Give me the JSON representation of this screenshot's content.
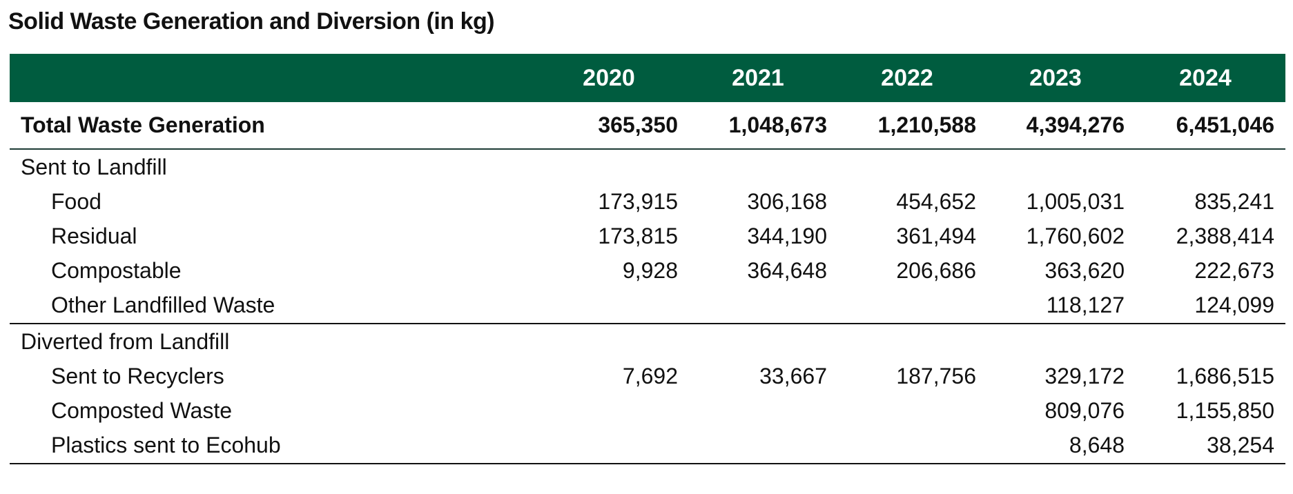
{
  "title": "Solid Waste Generation and Diversion (in kg)",
  "columns": [
    "2020",
    "2021",
    "2022",
    "2023",
    "2024"
  ],
  "total": {
    "label": "Total Waste Generation",
    "values": [
      "365,350",
      "1,048,673",
      "1,210,588",
      "4,394,276",
      "6,451,046"
    ]
  },
  "sections": [
    {
      "label": "Sent to Landfill",
      "rows": [
        {
          "label": "Food",
          "values": [
            "173,915",
            "306,168",
            "454,652",
            "1,005,031",
            "835,241"
          ]
        },
        {
          "label": "Residual",
          "values": [
            "173,815",
            "344,190",
            "361,494",
            "1,760,602",
            "2,388,414"
          ]
        },
        {
          "label": "Compostable",
          "values": [
            "9,928",
            "364,648",
            "206,686",
            "363,620",
            "222,673"
          ]
        },
        {
          "label": "Other Landfilled Waste",
          "values": [
            "",
            "",
            "",
            "118,127",
            "124,099"
          ]
        }
      ]
    },
    {
      "label": "Diverted from Landfill",
      "rows": [
        {
          "label": "Sent to Recyclers",
          "values": [
            "7,692",
            "33,667",
            "187,756",
            "329,172",
            "1,686,515"
          ]
        },
        {
          "label": "Composted Waste",
          "values": [
            "",
            "",
            "",
            "809,076",
            "1,155,850"
          ]
        },
        {
          "label": "Plastics sent to Ecohub",
          "values": [
            "",
            "",
            "",
            "8,648",
            "38,254"
          ]
        }
      ]
    }
  ]
}
